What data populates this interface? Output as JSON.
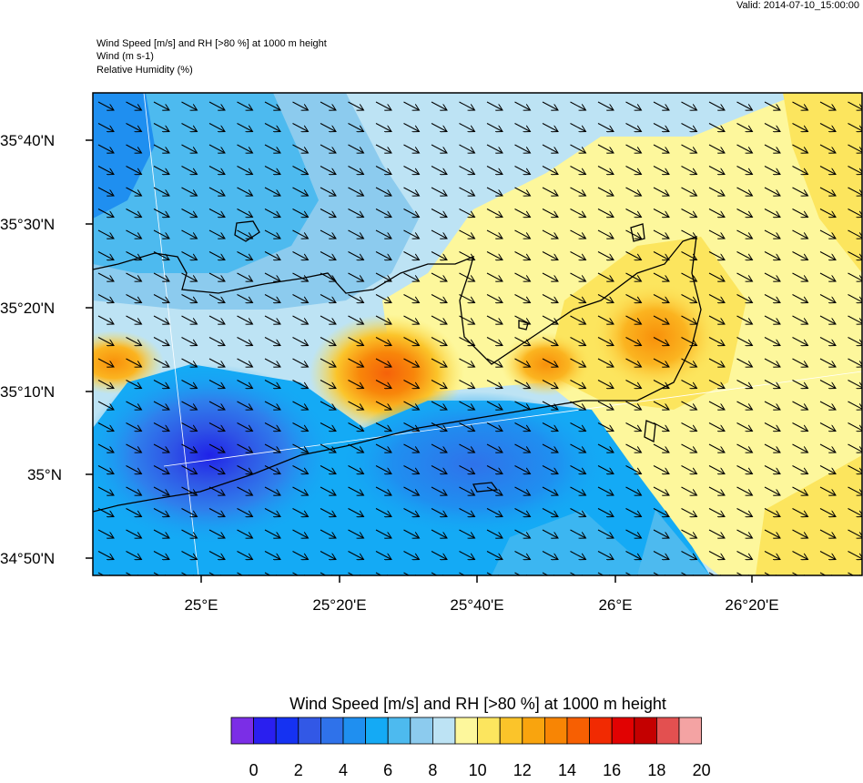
{
  "valid_time": "Valid: 2014-07-10_15:00:00",
  "header": {
    "line1": "Wind Speed [m/s] and RH [>80 %] at 1000 m height",
    "line2": "Wind   (m s-1)",
    "line3": "Relative Humidity   (%)"
  },
  "lat_labels": [
    "35°40'N",
    "35°30'N",
    "35°20'N",
    "35°10'N",
    "35°N",
    "34°50'N"
  ],
  "lon_labels": [
    "25°E",
    "25°20'E",
    "25°40'E",
    "26°E",
    "26°20'E"
  ],
  "legend": {
    "title": "Wind Speed [m/s] and RH [>80 %] at 1000 m height",
    "ticks": [
      "0",
      "2",
      "4",
      "6",
      "8",
      "10",
      "12",
      "14",
      "16",
      "18",
      "20"
    ],
    "colors": [
      "#7b2ee6",
      "#2a1fef",
      "#1532f2",
      "#3258e6",
      "#2f72ea",
      "#1f8ff0",
      "#14aaf5",
      "#4dbaef",
      "#8ccbee",
      "#bde3f4",
      "#fdf79c",
      "#fce55e",
      "#fbc42a",
      "#f9a40e",
      "#f88504",
      "#f75f02",
      "#f12a02",
      "#e10202",
      "#c40000",
      "#e35050",
      "#f4a3a3"
    ]
  }
}
